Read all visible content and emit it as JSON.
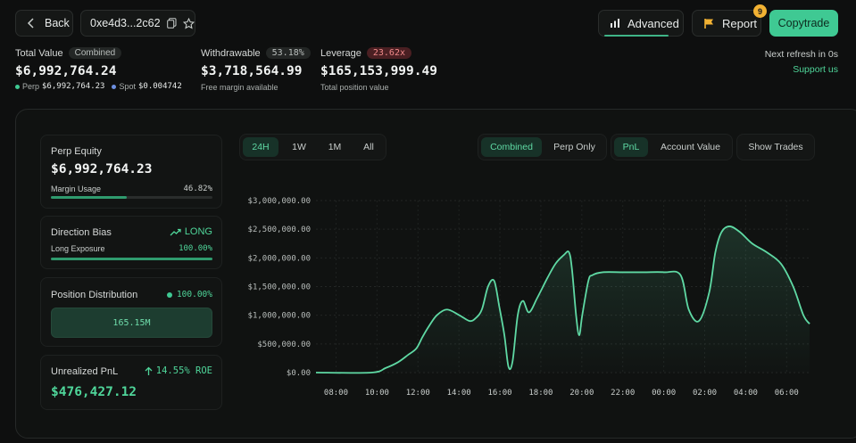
{
  "header": {
    "back_label": "Back",
    "address": "0xe4d3...2c62",
    "advanced_label": "Advanced",
    "report_label": "Report",
    "report_badge": "9",
    "copytrade_label": "Copytrade",
    "refresh_text": "Next refresh in 0s",
    "support_label": "Support us"
  },
  "stats": {
    "total_value": {
      "label": "Total Value",
      "pill": "Combined",
      "value": "$6,992,764.24",
      "perp_label": "Perp",
      "perp_value": "$6,992,764.23",
      "spot_label": "Spot",
      "spot_value": "$0.004742"
    },
    "withdrawable": {
      "label": "Withdrawable",
      "pill": "53.18%",
      "value": "$3,718,564.99",
      "sub": "Free margin available"
    },
    "leverage": {
      "label": "Leverage",
      "pill": "23.62x",
      "value": "$165,153,999.49",
      "sub": "Total position value"
    }
  },
  "side": {
    "perp_equity": {
      "title": "Perp Equity",
      "value": "$6,992,764.23",
      "margin_label": "Margin Usage",
      "margin_value": "46.82%",
      "margin_fraction": 0.4682
    },
    "direction": {
      "title": "Direction Bias",
      "bias": "LONG",
      "exposure_label": "Long Exposure",
      "exposure_value": "100.00%",
      "exposure_fraction": 1.0
    },
    "distribution": {
      "title": "Position Distribution",
      "value": "100.00%",
      "box_value": "165.15M"
    },
    "upnl": {
      "title": "Unrealized PnL",
      "roe": "14.55% ROE",
      "value": "$476,427.12"
    }
  },
  "controls": {
    "ranges": [
      "24H",
      "1W",
      "1M",
      "All"
    ],
    "range_active": 0,
    "mode": [
      "Combined",
      "Perp Only"
    ],
    "mode_active": 0,
    "metric": [
      "PnL",
      "Account Value"
    ],
    "metric_active": 0,
    "show_trades": "Show Trades"
  },
  "chart_data": {
    "type": "area",
    "yticks": [
      "$3,000,000.00",
      "$2,500,000.00",
      "$2,000,000.00",
      "$1,500,000.00",
      "$1,000,000.00",
      "$500,000.00",
      "$0.00"
    ],
    "ytick_values": [
      3000000,
      2500000,
      2000000,
      1500000,
      1000000,
      500000,
      0
    ],
    "xticks": [
      "08:00",
      "10:00",
      "12:00",
      "14:00",
      "16:00",
      "18:00",
      "20:00",
      "22:00",
      "00:00",
      "02:00",
      "04:00",
      "06:00"
    ],
    "ylim": [
      0,
      3000000
    ],
    "xlim_hours": [
      7.5,
      31.6
    ],
    "line_color": "#5fd9a4",
    "series": [
      {
        "x": [
          7.5,
          10.2,
          10.9,
          11.5,
          12.0,
          12.4,
          12.7,
          13.0,
          13.4,
          13.9,
          14.5,
          15.0,
          15.3,
          15.6,
          15.9,
          16.2,
          16.45,
          16.7,
          16.9,
          17.1,
          17.35,
          17.6,
          17.9,
          18.3,
          18.8,
          19.2,
          19.6,
          19.85,
          20.0,
          20.2,
          20.35,
          20.5,
          20.8,
          21.0,
          21.5,
          22.5,
          23.5,
          24.5,
          25.3,
          25.7,
          26.2,
          26.7,
          27.0,
          27.3,
          27.7,
          28.2,
          28.8,
          29.5,
          30.2,
          30.8,
          31.3,
          31.6
        ],
        "y": [
          0,
          0,
          80000,
          180000,
          310000,
          420000,
          620000,
          800000,
          1000000,
          1100000,
          1000000,
          900000,
          950000,
          1100000,
          1500000,
          1600000,
          1150000,
          650000,
          100000,
          200000,
          1000000,
          1250000,
          1050000,
          1300000,
          1650000,
          1900000,
          2050000,
          2100000,
          1800000,
          1000000,
          650000,
          1000000,
          1600000,
          1700000,
          1750000,
          1750000,
          1750000,
          1750000,
          1700000,
          1100000,
          900000,
          1400000,
          2100000,
          2450000,
          2550000,
          2450000,
          2250000,
          2100000,
          1900000,
          1500000,
          1000000,
          850000
        ]
      }
    ]
  }
}
